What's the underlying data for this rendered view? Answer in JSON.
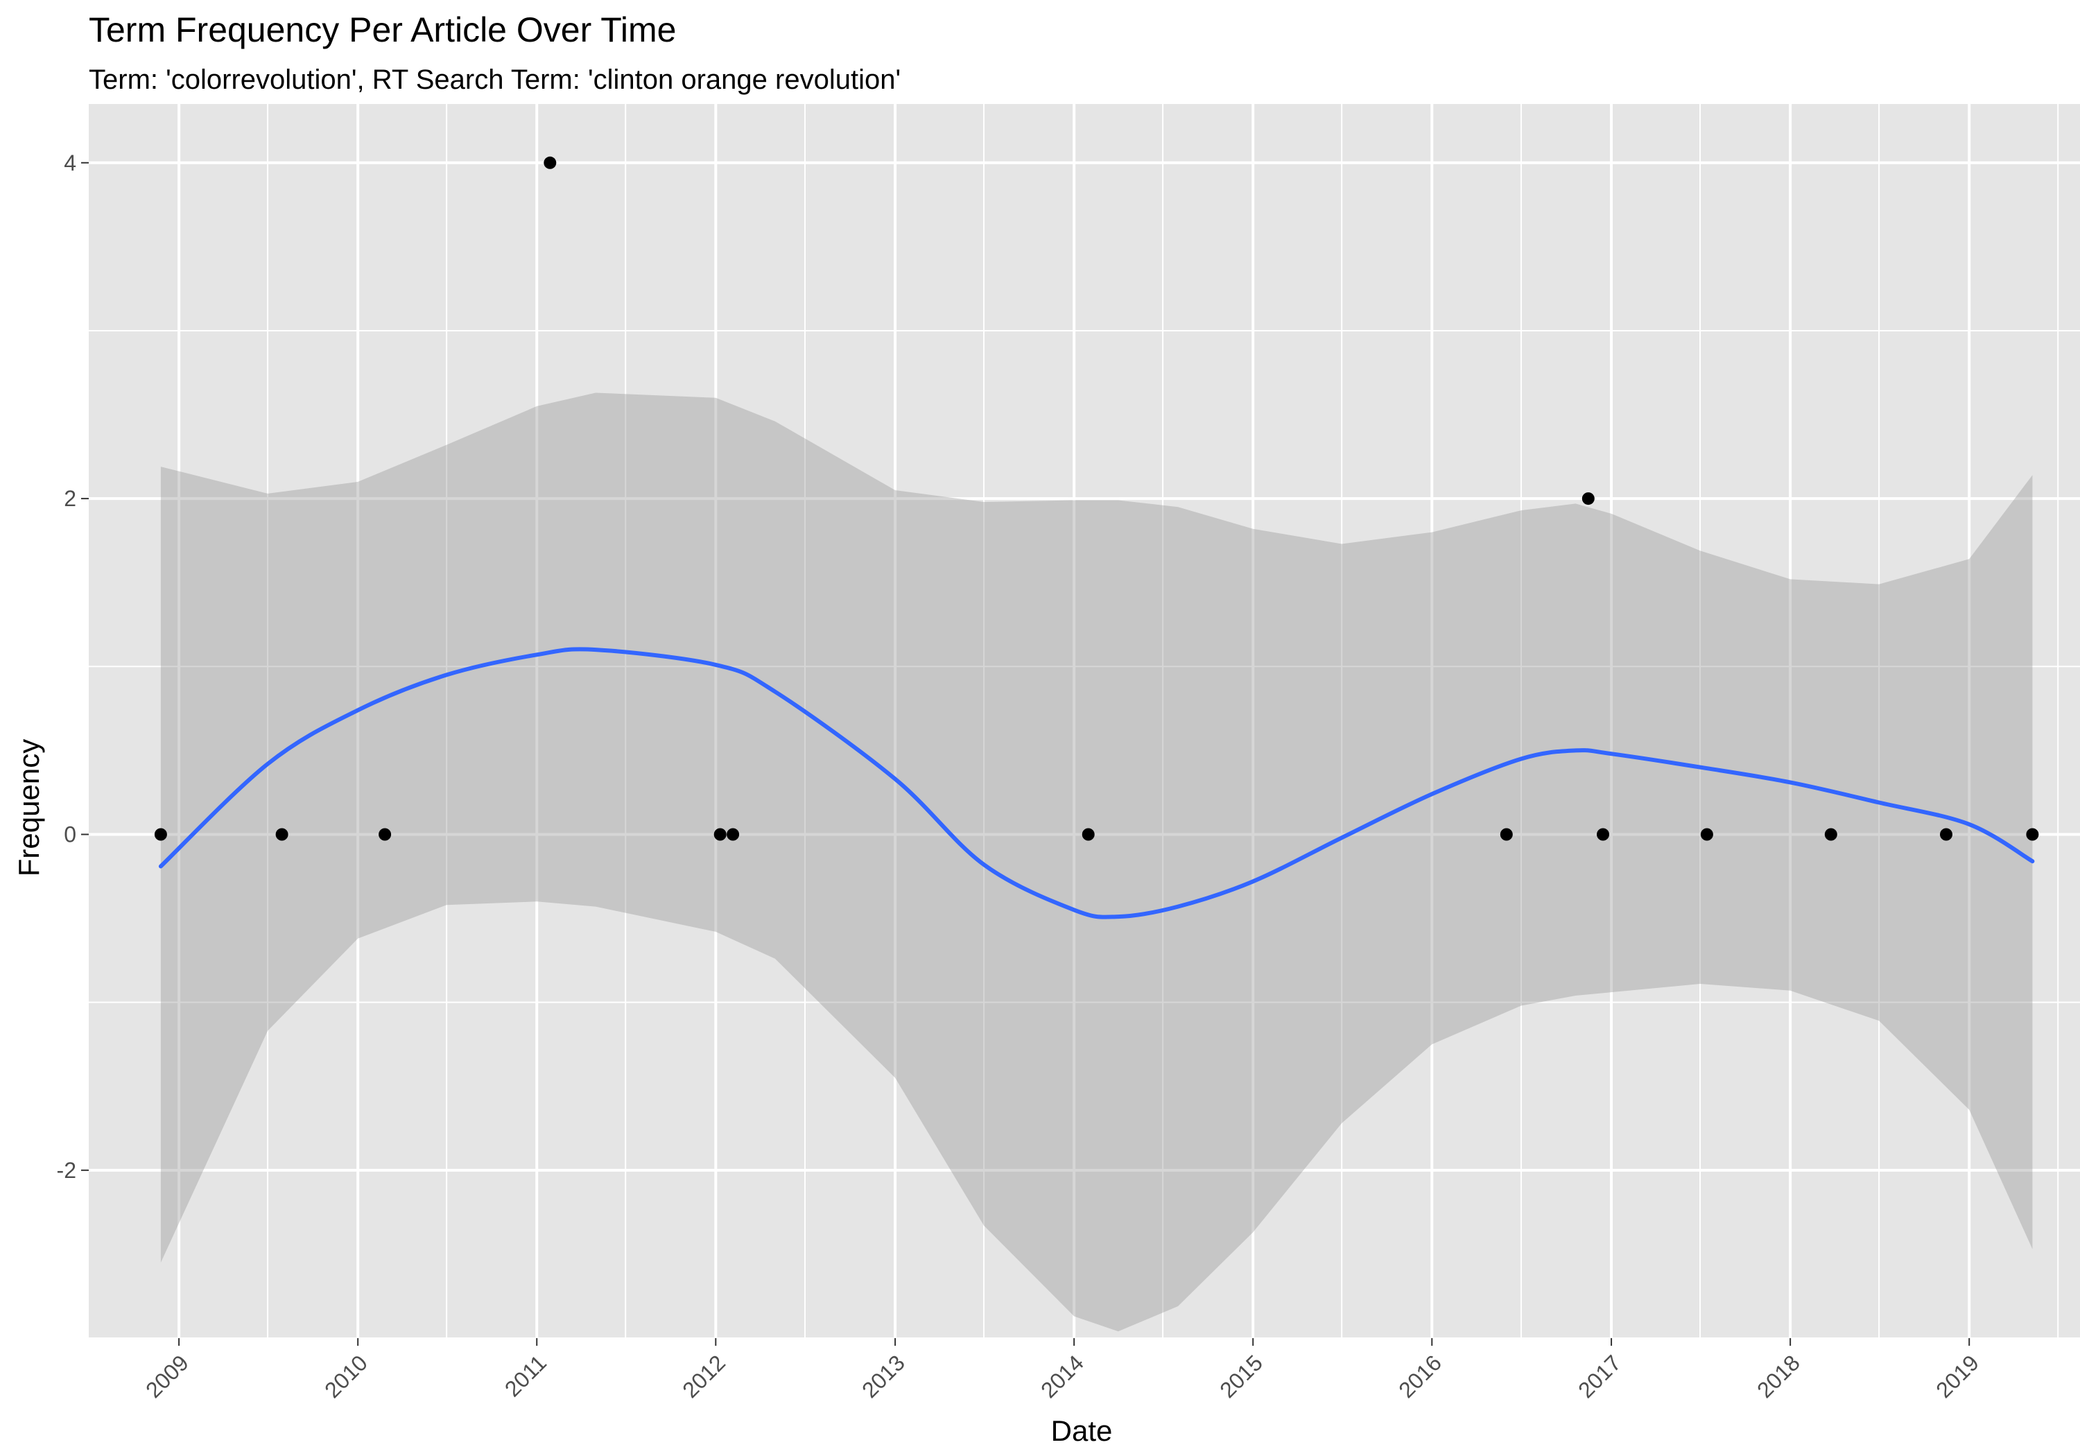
{
  "chart_data": {
    "type": "scatter",
    "title": "Term Frequency Per Article Over Time",
    "subtitle": "Term: 'colorrevolution', RT Search Term: 'clinton orange revolution'",
    "xlabel": "Date",
    "ylabel": "Frequency",
    "xlim": [
      "2008-07-01",
      "2019-08-15"
    ],
    "ylim": [
      -3.0,
      4.35
    ],
    "x_ticks": [
      "2009",
      "2010",
      "2011",
      "2012",
      "2013",
      "2014",
      "2015",
      "2016",
      "2017",
      "2018",
      "2019"
    ],
    "y_ticks": [
      -2,
      0,
      2,
      4
    ],
    "grid": true,
    "legend": "none",
    "colors": {
      "panel": "#e5e5e5",
      "grid": "#ffffff",
      "points": "#000000",
      "smooth_line": "#3366ff",
      "ribbon": "#999999"
    },
    "points": [
      {
        "x": "2008-11-25",
        "y": 0
      },
      {
        "x": "2009-07-30",
        "y": 0
      },
      {
        "x": "2010-02-25",
        "y": 0
      },
      {
        "x": "2011-01-28",
        "y": 4
      },
      {
        "x": "2012-01-10",
        "y": 0
      },
      {
        "x": "2012-02-05",
        "y": 0
      },
      {
        "x": "2014-01-30",
        "y": 0
      },
      {
        "x": "2016-06-01",
        "y": 0
      },
      {
        "x": "2016-11-15",
        "y": 2
      },
      {
        "x": "2016-12-15",
        "y": 0
      },
      {
        "x": "2017-07-15",
        "y": 0
      },
      {
        "x": "2018-03-25",
        "y": 0
      },
      {
        "x": "2018-11-15",
        "y": 0
      },
      {
        "x": "2019-05-10",
        "y": 0
      }
    ],
    "smooth": {
      "x": [
        "2008-11-25",
        "2009-07-01",
        "2010-01-01",
        "2010-07-01",
        "2011-01-01",
        "2011-05-01",
        "2012-01-01",
        "2012-05-01",
        "2013-01-01",
        "2013-07-01",
        "2014-01-01",
        "2014-04-01",
        "2014-08-01",
        "2015-01-01",
        "2015-07-01",
        "2016-01-01",
        "2016-07-01",
        "2016-10-20",
        "2017-01-01",
        "2017-07-01",
        "2018-01-01",
        "2018-07-01",
        "2019-01-01",
        "2019-05-10"
      ],
      "fit": [
        -0.19,
        0.42,
        0.74,
        0.95,
        1.07,
        1.1,
        1.01,
        0.85,
        0.33,
        -0.18,
        -0.45,
        -0.49,
        -0.43,
        -0.28,
        -0.02,
        0.24,
        0.45,
        0.5,
        0.48,
        0.4,
        0.31,
        0.19,
        0.06,
        -0.16
      ],
      "upper": [
        2.19,
        2.03,
        2.1,
        2.32,
        2.55,
        2.63,
        2.6,
        2.46,
        2.05,
        1.98,
        1.99,
        1.99,
        1.95,
        1.82,
        1.73,
        1.8,
        1.93,
        1.97,
        1.91,
        1.69,
        1.52,
        1.49,
        1.64,
        2.14
      ],
      "lower": [
        -2.55,
        -1.17,
        -0.62,
        -0.42,
        -0.4,
        -0.43,
        -0.58,
        -0.74,
        -1.45,
        -2.33,
        -2.87,
        -2.96,
        -2.81,
        -2.37,
        -1.72,
        -1.25,
        -1.02,
        -0.96,
        -0.94,
        -0.89,
        -0.93,
        -1.11,
        -1.64,
        -2.47
      ]
    }
  }
}
